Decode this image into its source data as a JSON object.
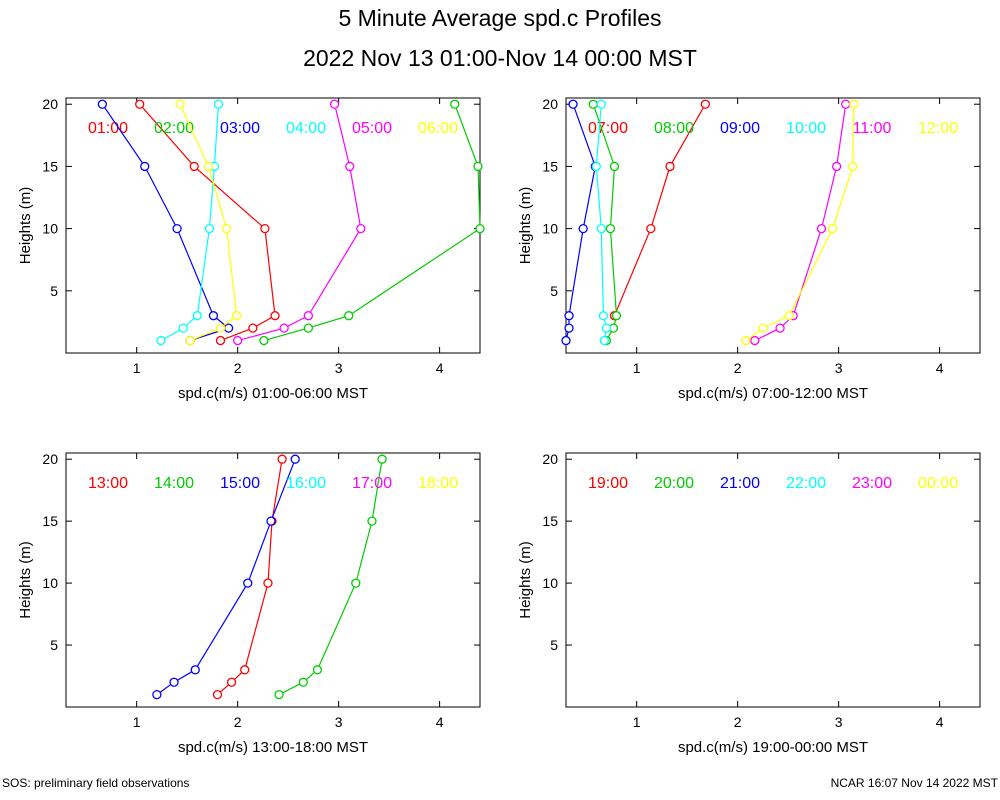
{
  "title": "5 Minute Average spd.c Profiles",
  "subtitle": "2022 Nov 13 01:00-Nov 14 00:00 MST",
  "footer_left": "SOS: preliminary field observations",
  "footer_right": "NCAR 16:07 Nov 14 2022 MST",
  "chart_data": [
    {
      "type": "line",
      "xlabel": "spd.c(m/s) 01:00-06:00 MST",
      "ylabel": "Heights (m)",
      "xlim": [
        0.3,
        4.4
      ],
      "ylim": [
        0,
        20.5
      ],
      "xticks": [
        1,
        2,
        3,
        4
      ],
      "yticks": [
        5,
        10,
        15,
        20
      ],
      "grid": false,
      "legend_position": "top",
      "series": [
        {
          "name": "01:00",
          "color": "#ff0000",
          "points": [
            [
              1.83,
              1
            ],
            [
              2.15,
              2
            ],
            [
              2.37,
              3
            ],
            [
              2.27,
              10
            ],
            [
              1.57,
              15
            ],
            [
              1.03,
              20
            ]
          ]
        },
        {
          "name": "02:00",
          "color": "#00cc00",
          "points": [
            [
              2.26,
              1
            ],
            [
              2.7,
              2
            ],
            [
              3.1,
              3
            ],
            [
              4.4,
              10
            ],
            [
              4.38,
              15
            ],
            [
              4.15,
              20
            ]
          ]
        },
        {
          "name": "03:00",
          "color": "#0000ff",
          "points": [
            [
              1.53,
              1
            ],
            [
              1.91,
              2
            ],
            [
              1.76,
              3
            ],
            [
              1.4,
              10
            ],
            [
              1.08,
              15
            ],
            [
              0.66,
              20
            ]
          ]
        },
        {
          "name": "04:00",
          "color": "#00ffff",
          "points": [
            [
              1.24,
              1
            ],
            [
              1.46,
              2
            ],
            [
              1.6,
              3
            ],
            [
              1.72,
              10
            ],
            [
              1.77,
              15
            ],
            [
              1.81,
              20
            ]
          ]
        },
        {
          "name": "05:00",
          "color": "#ff00ff",
          "points": [
            [
              2.0,
              1
            ],
            [
              2.46,
              2
            ],
            [
              2.7,
              3
            ],
            [
              3.22,
              10
            ],
            [
              3.11,
              15
            ],
            [
              2.96,
              20
            ]
          ]
        },
        {
          "name": "06:00",
          "color": "#ffff00",
          "points": [
            [
              1.53,
              1
            ],
            [
              1.83,
              2
            ],
            [
              1.99,
              3
            ],
            [
              1.89,
              10
            ],
            [
              1.71,
              15
            ],
            [
              1.43,
              20
            ]
          ]
        }
      ]
    },
    {
      "type": "line",
      "xlabel": "spd.c(m/s) 07:00-12:00 MST",
      "ylabel": "Heights (m)",
      "xlim": [
        0.3,
        4.4
      ],
      "ylim": [
        0,
        20.5
      ],
      "xticks": [
        1,
        2,
        3,
        4
      ],
      "yticks": [
        5,
        10,
        15,
        20
      ],
      "grid": false,
      "legend_position": "top",
      "series": [
        {
          "name": "07:00",
          "color": "#ff0000",
          "points": [
            [
              0.78,
              3
            ],
            [
              1.14,
              10
            ],
            [
              1.33,
              15
            ],
            [
              1.68,
              20
            ]
          ]
        },
        {
          "name": "08:00",
          "color": "#00cc00",
          "points": [
            [
              0.7,
              1
            ],
            [
              0.77,
              2
            ],
            [
              0.8,
              3
            ],
            [
              0.74,
              10
            ],
            [
              0.78,
              15
            ],
            [
              0.57,
              20
            ]
          ]
        },
        {
          "name": "09:00",
          "color": "#0000ff",
          "points": [
            [
              0.3,
              1
            ],
            [
              0.33,
              2
            ],
            [
              0.33,
              3
            ],
            [
              0.47,
              10
            ],
            [
              0.59,
              15
            ],
            [
              0.37,
              20
            ]
          ]
        },
        {
          "name": "10:00",
          "color": "#00ffff",
          "points": [
            [
              0.68,
              1
            ],
            [
              0.7,
              2
            ],
            [
              0.67,
              3
            ],
            [
              0.65,
              10
            ],
            [
              0.6,
              15
            ],
            [
              0.65,
              20
            ]
          ]
        },
        {
          "name": "11:00",
          "color": "#ff00ff",
          "points": [
            [
              2.17,
              1
            ],
            [
              2.42,
              2
            ],
            [
              2.55,
              3
            ],
            [
              2.83,
              10
            ],
            [
              2.98,
              15
            ],
            [
              3.07,
              20
            ]
          ]
        },
        {
          "name": "12:00",
          "color": "#ffff00",
          "points": [
            [
              2.08,
              1
            ],
            [
              2.25,
              2
            ],
            [
              2.51,
              3
            ],
            [
              2.94,
              10
            ],
            [
              3.14,
              15
            ],
            [
              3.15,
              20
            ]
          ]
        }
      ]
    },
    {
      "type": "line",
      "xlabel": "spd.c(m/s) 13:00-18:00 MST",
      "ylabel": "Heights (m)",
      "xlim": [
        0.3,
        4.4
      ],
      "ylim": [
        0,
        20.5
      ],
      "xticks": [
        1,
        2,
        3,
        4
      ],
      "yticks": [
        5,
        10,
        15,
        20
      ],
      "grid": false,
      "legend_position": "top",
      "series": [
        {
          "name": "13:00",
          "color": "#ff0000",
          "points": [
            [
              1.8,
              1
            ],
            [
              1.94,
              2
            ],
            [
              2.07,
              3
            ],
            [
              2.3,
              10
            ],
            [
              2.34,
              15
            ],
            [
              2.44,
              20
            ]
          ]
        },
        {
          "name": "14:00",
          "color": "#00cc00",
          "points": [
            [
              2.41,
              1
            ],
            [
              2.65,
              2
            ],
            [
              2.79,
              3
            ],
            [
              3.17,
              10
            ],
            [
              3.33,
              15
            ],
            [
              3.43,
              20
            ]
          ]
        },
        {
          "name": "15:00",
          "color": "#0000ff",
          "points": [
            [
              1.2,
              1
            ],
            [
              1.37,
              2
            ],
            [
              1.58,
              3
            ],
            [
              2.1,
              10
            ],
            [
              2.33,
              15
            ],
            [
              2.57,
              20
            ]
          ]
        },
        {
          "name": "16:00",
          "color": "#00ffff",
          "points": []
        },
        {
          "name": "17:00",
          "color": "#ff00ff",
          "points": []
        },
        {
          "name": "18:00",
          "color": "#ffff00",
          "points": []
        }
      ]
    },
    {
      "type": "line",
      "xlabel": "spd.c(m/s) 19:00-00:00 MST",
      "ylabel": "Heights (m)",
      "xlim": [
        0.3,
        4.4
      ],
      "ylim": [
        0,
        20.5
      ],
      "xticks": [
        1,
        2,
        3,
        4
      ],
      "yticks": [
        5,
        10,
        15,
        20
      ],
      "grid": false,
      "legend_position": "top",
      "series": [
        {
          "name": "19:00",
          "color": "#ff0000",
          "points": []
        },
        {
          "name": "20:00",
          "color": "#00cc00",
          "points": []
        },
        {
          "name": "21:00",
          "color": "#0000ff",
          "points": []
        },
        {
          "name": "22:00",
          "color": "#00ffff",
          "points": []
        },
        {
          "name": "23:00",
          "color": "#ff00ff",
          "points": []
        },
        {
          "name": "00:00",
          "color": "#ffff00",
          "points": []
        }
      ]
    }
  ]
}
